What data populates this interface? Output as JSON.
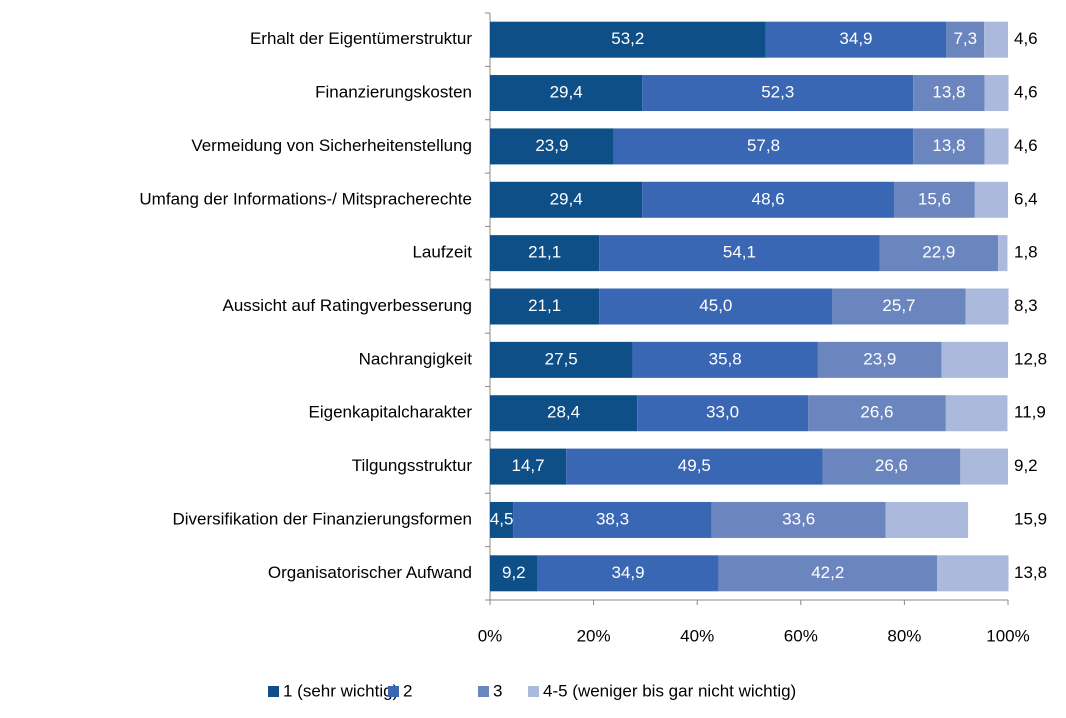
{
  "chart_data": {
    "type": "bar",
    "orientation": "horizontal",
    "stacked": true,
    "categories": [
      "Erhalt der Eigentümerstruktur",
      "Finanzierungskosten",
      "Vermeidung von Sicherheitenstellung",
      "Umfang der Informations-/ Mitspracherechte",
      "Laufzeit",
      "Aussicht auf Ratingverbesserung",
      "Nachrangigkeit",
      "Eigenkapitalcharakter",
      "Tilgungsstruktur",
      "Diversifikation der Finanzierungsformen",
      "Organisatorischer Aufwand"
    ],
    "series": [
      {
        "name": "1 (sehr wichtig)",
        "color": "#0f4f88",
        "values": [
          53.2,
          29.4,
          23.9,
          29.4,
          21.1,
          21.1,
          27.5,
          28.4,
          14.7,
          4.5,
          9.2
        ],
        "value_labels": [
          "53,2",
          "29,4",
          "23,9",
          "29,4",
          "21,1",
          "21,1",
          "27,5",
          "28,4",
          "14,7",
          "4,5",
          "9,2"
        ]
      },
      {
        "name": "2",
        "color": "#3a67b3",
        "values": [
          34.9,
          52.3,
          57.8,
          48.6,
          54.1,
          45.0,
          35.8,
          33.0,
          49.5,
          38.3,
          34.9
        ],
        "value_labels": [
          "34,9",
          "52,3",
          "57,8",
          "48,6",
          "54,1",
          "45,0",
          "35,8",
          "33,0",
          "49,5",
          "38,3",
          "34,9"
        ]
      },
      {
        "name": "3",
        "color": "#6b86bf",
        "values": [
          7.3,
          13.8,
          13.8,
          15.6,
          22.9,
          25.7,
          23.9,
          26.6,
          26.6,
          33.6,
          42.2
        ],
        "value_labels": [
          "7,3",
          "13,8",
          "13,8",
          "15,6",
          "22,9",
          "25,7",
          "23,9",
          "26,6",
          "26,6",
          "33,6",
          "42,2"
        ]
      },
      {
        "name": "4-5 (weniger bis gar nicht wichtig)",
        "color": "#aab9dc",
        "values": [
          4.6,
          4.6,
          4.6,
          6.4,
          1.8,
          8.3,
          12.8,
          11.9,
          9.2,
          15.9,
          13.8
        ],
        "value_labels": [
          "4,6",
          "4,6",
          "4,6",
          "6,4",
          "1,8",
          "8,3",
          "12,8",
          "11,9",
          "9,2",
          "15,9",
          "13,8"
        ]
      }
    ],
    "xlim": [
      0,
      100
    ],
    "xticks": [
      {
        "value": 0,
        "label": "0%"
      },
      {
        "value": 20,
        "label": "20%"
      },
      {
        "value": 40,
        "label": "40%"
      },
      {
        "value": 60,
        "label": "60%"
      },
      {
        "value": 80,
        "label": "80%"
      },
      {
        "value": 100,
        "label": "100%"
      }
    ],
    "legend": "bottom"
  }
}
